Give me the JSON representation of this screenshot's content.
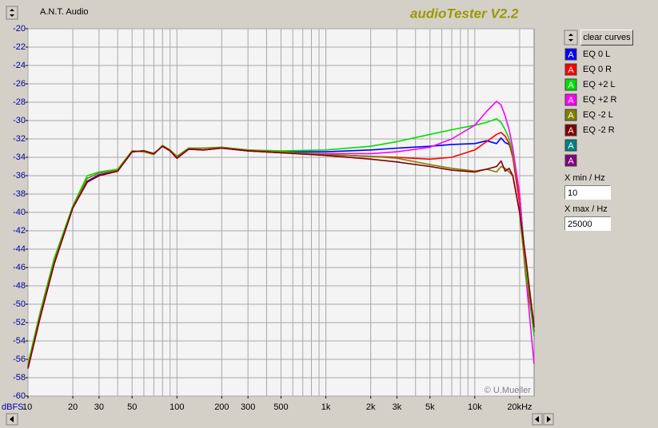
{
  "ui": {
    "company": "A.N.T. Audio",
    "app_title": "audioTester V2.2",
    "clear_button": "clear curves",
    "xmin_label": "X min / Hz",
    "xmax_label": "X max / Hz",
    "credit": "© U.Mueller",
    "button_glyph": "A",
    "empty_slots": [
      {
        "color": "#008080"
      },
      {
        "color": "#800080"
      }
    ]
  },
  "chart_data": {
    "type": "line",
    "ylabel": "dBFS",
    "log_x": true,
    "grid": true,
    "xlim": [
      10,
      25000
    ],
    "ylim": [
      -60,
      -20
    ],
    "yticks": [
      -20,
      -22,
      -24,
      -26,
      -28,
      -30,
      -32,
      -34,
      -36,
      -38,
      -40,
      -42,
      -44,
      -46,
      -48,
      -50,
      -52,
      -54,
      -56,
      -58,
      -60
    ],
    "xticks": [
      10,
      20,
      30,
      50,
      100,
      200,
      300,
      500,
      {
        "value": 1000,
        "label": "1k"
      },
      {
        "value": 2000,
        "label": "2k"
      },
      {
        "value": 3000,
        "label": "3k"
      },
      {
        "value": 5000,
        "label": "5k"
      },
      {
        "value": 10000,
        "label": "10k"
      },
      {
        "value": 20000,
        "label": "20kHz"
      }
    ],
    "xgrid": [
      10,
      20,
      30,
      40,
      50,
      60,
      70,
      80,
      90,
      100,
      200,
      300,
      400,
      500,
      600,
      700,
      800,
      900,
      1000,
      2000,
      3000,
      4000,
      5000,
      6000,
      7000,
      8000,
      9000,
      10000,
      20000
    ],
    "x": [
      10,
      12,
      15,
      20,
      25,
      30,
      40,
      50,
      60,
      70,
      80,
      90,
      100,
      120,
      150,
      200,
      300,
      500,
      1000,
      2000,
      3000,
      5000,
      7000,
      10000,
      12000,
      14000,
      15000,
      16000,
      17000,
      18000,
      20000,
      22000,
      25000
    ],
    "series": [
      {
        "name": "EQ 0 L",
        "color": "#0000ff",
        "values": [
          -56.8,
          -51.4,
          -45.5,
          -39.5,
          -36.6,
          -35.9,
          -35.5,
          -33.4,
          -33.3,
          -33.6,
          -32.8,
          -33.3,
          -34.1,
          -33.1,
          -33.2,
          -33.0,
          -33.3,
          -33.4,
          -33.4,
          -33.2,
          -33.0,
          -32.8,
          -32.6,
          -32.5,
          -32.2,
          -32.5,
          -31.9,
          -32.4,
          -32.6,
          -33.5,
          -38,
          -46,
          -53
        ]
      },
      {
        "name": "EQ 0 R",
        "color": "#ff0000",
        "values": [
          -57,
          -51.6,
          -45.6,
          -39.5,
          -36.7,
          -36.0,
          -35.5,
          -33.4,
          -33.3,
          -33.6,
          -32.8,
          -33.3,
          -34.1,
          -33.1,
          -33.2,
          -33.0,
          -33.3,
          -33.5,
          -33.7,
          -33.9,
          -34.0,
          -34.2,
          -34.0,
          -33.2,
          -32.3,
          -31.5,
          -31.3,
          -31.7,
          -32.5,
          -34,
          -39,
          -47,
          -53
        ]
      },
      {
        "name": "EQ +2  L",
        "color": "#00e000",
        "values": [
          -56.5,
          -51,
          -45,
          -39.3,
          -36,
          -35.6,
          -35.3,
          -33.3,
          -33.4,
          -33.7,
          -32.7,
          -33.2,
          -33.9,
          -33.0,
          -33.0,
          -32.9,
          -33.2,
          -33.3,
          -33.2,
          -32.8,
          -32.3,
          -31.5,
          -31.0,
          -30.5,
          -30.2,
          -29.8,
          -30.2,
          -31,
          -32,
          -33.5,
          -38,
          -46,
          -53.5
        ]
      },
      {
        "name": "EQ +2 R",
        "color": "#ff00ff",
        "values": [
          -57,
          -51.6,
          -45.6,
          -39.5,
          -36.7,
          -36.0,
          -35.5,
          -33.4,
          -33.3,
          -33.6,
          -32.8,
          -33.3,
          -34.1,
          -33.1,
          -33.2,
          -33.0,
          -33.3,
          -33.5,
          -33.6,
          -33.6,
          -33.4,
          -32.9,
          -32.0,
          -30.5,
          -29.0,
          -27.9,
          -28.3,
          -29.5,
          -31,
          -33,
          -38,
          -47,
          -56.5
        ]
      },
      {
        "name": "EQ -2  L",
        "color": "#808000",
        "values": [
          -56.7,
          -51.2,
          -45.3,
          -39.4,
          -36.3,
          -35.7,
          -35.4,
          -33.3,
          -33.4,
          -33.7,
          -32.7,
          -33.2,
          -33.9,
          -33.0,
          -33.0,
          -32.9,
          -33.2,
          -33.4,
          -33.7,
          -33.9,
          -34.1,
          -34.8,
          -35.2,
          -35.5,
          -35.3,
          -35.6,
          -35.0,
          -35.2,
          -35.6,
          -36,
          -40,
          -47,
          -52
        ]
      },
      {
        "name": "EQ -2 R",
        "color": "#800000",
        "values": [
          -57,
          -51.6,
          -45.6,
          -39.5,
          -36.7,
          -36.0,
          -35.5,
          -33.4,
          -33.3,
          -33.6,
          -32.8,
          -33.3,
          -34.1,
          -33.1,
          -33.2,
          -33.0,
          -33.3,
          -33.5,
          -33.8,
          -34.2,
          -34.5,
          -35.0,
          -35.4,
          -35.6,
          -35.3,
          -35.0,
          -34.4,
          -35.5,
          -35.2,
          -36,
          -40,
          -45,
          -52.5
        ]
      }
    ]
  }
}
